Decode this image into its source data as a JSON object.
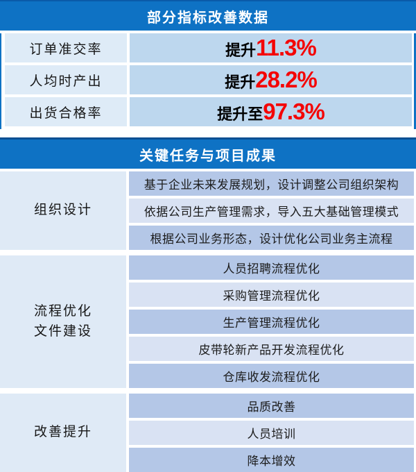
{
  "colors": {
    "header_blue": "#0e72c4",
    "header_top_edge": "#0d4f92",
    "table1_label_bg": "#deebf7",
    "table1_value_bg": "#bdd7ee",
    "table2_label_bg": "#dfeaf6",
    "row_medium_blue": "#b4c7e7",
    "row_light_blue": "#d9e2f3",
    "value_red": "#f40505"
  },
  "table1": {
    "title": "部分指标改善数据",
    "rows": [
      {
        "label": "订单准交率",
        "prefix": "提升",
        "value": "11.3%"
      },
      {
        "label": "人均时产出",
        "prefix": "提升",
        "value": "28.2%"
      },
      {
        "label": "出货合格率",
        "prefix": "提升至",
        "value": "97.3%"
      }
    ]
  },
  "table2": {
    "title": "关键任务与项目成果",
    "groups": [
      {
        "label": "组织设计",
        "items": [
          "基于企业未来发展规划，设计调整公司组织架构",
          "依据公司生产管理需求，导入五大基础管理模式",
          "根据公司业务形态，设计优化公司业务主流程"
        ]
      },
      {
        "label": "流程优化\n文件建设",
        "items": [
          "人员招聘流程优化",
          "采购管理流程优化",
          "生产管理流程优化",
          "皮带轮新产品开发流程优化",
          "仓库收发流程优化"
        ]
      },
      {
        "label": "改善提升",
        "items": [
          "品质改善",
          "人员培训",
          "降本增效"
        ]
      }
    ]
  }
}
